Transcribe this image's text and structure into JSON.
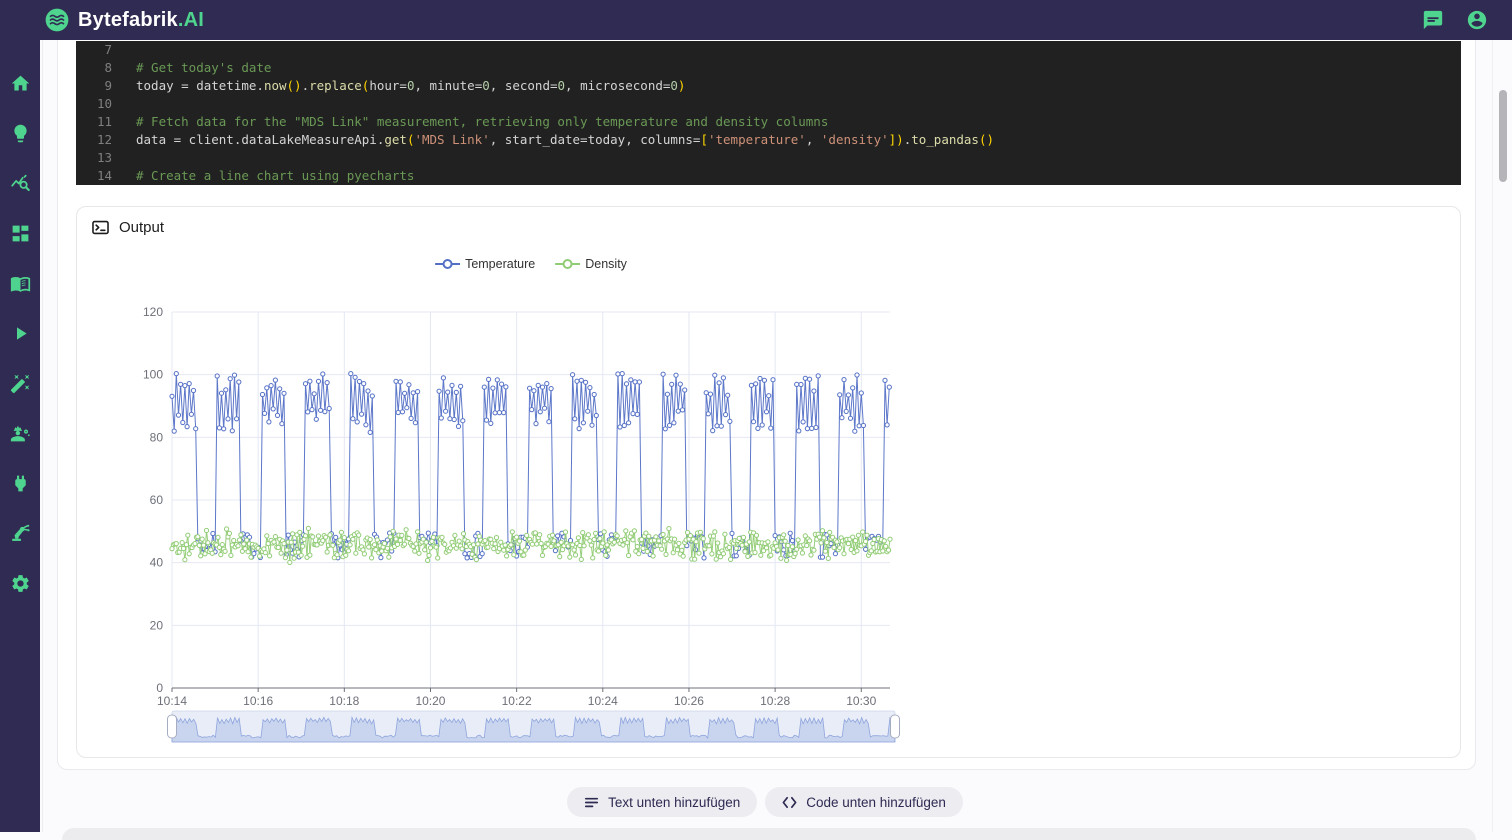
{
  "header": {
    "brand": "Bytefabrik",
    "brand_suffix": ".AI",
    "icons": [
      "chat-icon",
      "account-icon"
    ]
  },
  "sidebar": {
    "icons": [
      "home-icon",
      "lightbulb-icon",
      "chart-explore-icon",
      "dashboard-icon",
      "book-icon",
      "play-icon",
      "magic-wand-icon",
      "engineer-icon",
      "plug-icon",
      "robot-arm-icon",
      "gear-icon"
    ]
  },
  "editor": {
    "lines": [
      {
        "num": "7",
        "segments": []
      },
      {
        "num": "8",
        "segments": [
          {
            "t": "# Get today's date",
            "c": "comment"
          }
        ]
      },
      {
        "num": "9",
        "segments": [
          {
            "t": "today = datetime.",
            "c": "plain"
          },
          {
            "t": "now",
            "c": "func"
          },
          {
            "t": "()",
            "c": "paren"
          },
          {
            "t": ".",
            "c": "plain"
          },
          {
            "t": "replace",
            "c": "func"
          },
          {
            "t": "(",
            "c": "paren"
          },
          {
            "t": "hour=",
            "c": "plain"
          },
          {
            "t": "0",
            "c": "num"
          },
          {
            "t": ", minute=",
            "c": "plain"
          },
          {
            "t": "0",
            "c": "num"
          },
          {
            "t": ", second=",
            "c": "plain"
          },
          {
            "t": "0",
            "c": "num"
          },
          {
            "t": ", microsecond=",
            "c": "plain"
          },
          {
            "t": "0",
            "c": "num"
          },
          {
            "t": ")",
            "c": "paren"
          }
        ]
      },
      {
        "num": "10",
        "segments": []
      },
      {
        "num": "11",
        "segments": [
          {
            "t": "# Fetch data for the \"MDS Link\" measurement, retrieving only temperature and density columns",
            "c": "comment"
          }
        ]
      },
      {
        "num": "12",
        "segments": [
          {
            "t": "data = client.dataLakeMeasureApi.",
            "c": "plain"
          },
          {
            "t": "get",
            "c": "func"
          },
          {
            "t": "(",
            "c": "paren"
          },
          {
            "t": "'MDS Link'",
            "c": "str"
          },
          {
            "t": ", start_date=today, columns=",
            "c": "plain"
          },
          {
            "t": "[",
            "c": "paren"
          },
          {
            "t": "'temperature'",
            "c": "str"
          },
          {
            "t": ", ",
            "c": "plain"
          },
          {
            "t": "'density'",
            "c": "str"
          },
          {
            "t": "]",
            "c": "paren"
          },
          {
            "t": ")",
            "c": "paren"
          },
          {
            "t": ".",
            "c": "plain"
          },
          {
            "t": "to_pandas",
            "c": "func"
          },
          {
            "t": "()",
            "c": "paren"
          }
        ]
      },
      {
        "num": "13",
        "segments": []
      },
      {
        "num": "14",
        "segments": [
          {
            "t": "# Create a line chart using pyecharts",
            "c": "comment"
          }
        ]
      }
    ]
  },
  "output": {
    "title": "Output"
  },
  "chart_data": {
    "type": "line",
    "legend_position": "top-center",
    "grid": true,
    "series": [
      {
        "name": "Temperature",
        "color": "#5470c6",
        "symbol": "emptyCircle"
      },
      {
        "name": "Density",
        "color": "#91cc75",
        "symbol": "emptyCircle"
      }
    ],
    "x_ticks": [
      "10:14",
      "10:16",
      "10:18",
      "10:20",
      "10:22",
      "10:24",
      "10:26",
      "10:28",
      "10:30"
    ],
    "x_tick_interval_s": 120,
    "x_range": [
      "10:14:00",
      "10:30:40"
    ],
    "y_ticks": [
      0,
      20,
      40,
      60,
      80,
      100,
      120
    ],
    "ylim": [
      0,
      120
    ],
    "has_datazoom_slider": true,
    "generator": {
      "comment": "noisy periodic process read from pixels: temperature alternates ~30s bursts of 81-101 with ~28s baseline 41-50; density is dense noise band 40-51.5",
      "seed": 7,
      "duration_s": 1000,
      "temperature": {
        "sample_s": 3,
        "period_s": 62,
        "high_s": 34,
        "zig_hi_min": 93,
        "zig_hi_max": 100.5,
        "zig_lo_min": 81.5,
        "zig_lo_max": 89.5,
        "low_min": 41.5,
        "low_max": 49.5
      },
      "density": {
        "sample_s": 2,
        "min": 40,
        "max": 51.5
      }
    },
    "slider_colors": {
      "track": "#f3f5fb",
      "border": "#d9dfee",
      "area": "rgba(116,149,216,0.28)",
      "line": "#8ca3dc"
    }
  },
  "actions": {
    "add_text_label": "Text unten hinzufügen",
    "add_code_label": "Code unten hinzufügen"
  },
  "theme": {
    "navy": "#302b52",
    "green": "#4ed48e",
    "grid_line": "#e4e8f3",
    "axis_line": "#6e7079",
    "axis_label": "#6e7079"
  }
}
